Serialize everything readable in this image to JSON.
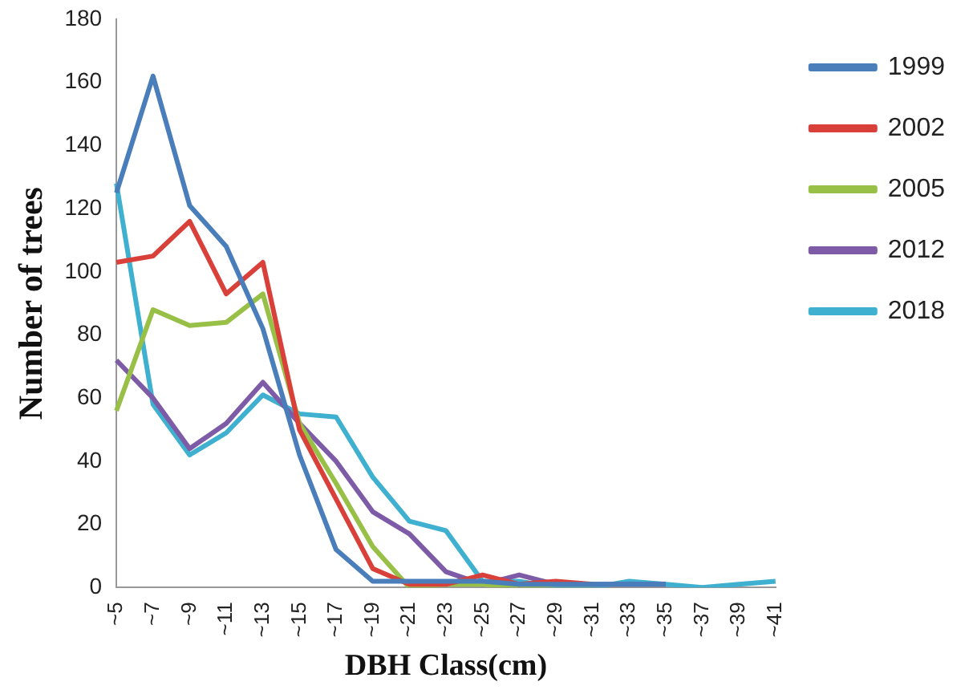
{
  "chart_data": {
    "type": "line",
    "xlabel": "DBH Class(cm)",
    "ylabel": "Number of trees",
    "categories": [
      "~5",
      "~7",
      "~9",
      "~11",
      "~13",
      "~15",
      "~17",
      "~19",
      "~21",
      "~23",
      "~25",
      "~27",
      "~29",
      "~31",
      "~33",
      "~35",
      "~37",
      "~39",
      "~41"
    ],
    "series": [
      {
        "name": "1999",
        "color": "#4a7ebb",
        "values": [
          125,
          162,
          121,
          108,
          82,
          42,
          12,
          2,
          2,
          2,
          2,
          1,
          1,
          1,
          1,
          1,
          null,
          null,
          null
        ]
      },
      {
        "name": "2002",
        "color": "#d9403a",
        "values": [
          103,
          105,
          116,
          93,
          103,
          50,
          28,
          6,
          1,
          1,
          4,
          1,
          2,
          1,
          null,
          null,
          null,
          null,
          null
        ]
      },
      {
        "name": "2005",
        "color": "#98c046",
        "values": [
          56,
          88,
          83,
          84,
          93,
          52,
          33,
          13,
          0,
          1,
          1,
          0,
          1,
          1,
          null,
          null,
          null,
          null,
          null
        ]
      },
      {
        "name": "2012",
        "color": "#7d5ba6",
        "values": [
          72,
          60,
          44,
          52,
          65,
          52,
          40,
          24,
          17,
          5,
          1,
          4,
          1,
          1,
          1,
          1,
          null,
          null,
          null
        ]
      },
      {
        "name": "2018",
        "color": "#3fb0cf",
        "values": [
          128,
          58,
          42,
          49,
          61,
          55,
          54,
          35,
          21,
          18,
          2,
          2,
          0,
          0,
          2,
          1,
          0,
          1,
          2
        ]
      }
    ],
    "ylim": [
      0,
      180
    ],
    "yticks": [
      0,
      20,
      40,
      60,
      80,
      100,
      120,
      140,
      160,
      180
    ],
    "grid": false,
    "legend": "right",
    "marker": "none",
    "line_style": "solid"
  }
}
